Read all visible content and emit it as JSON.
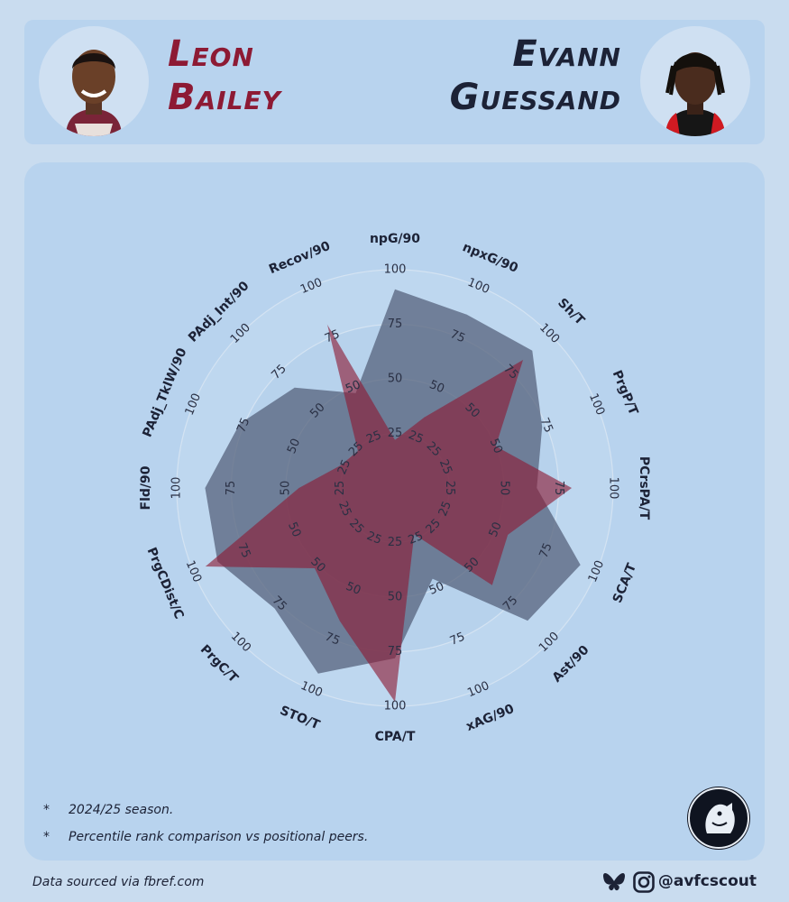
{
  "players": {
    "left": {
      "first": "Leon",
      "last": "Bailey",
      "color": "#8d1a34"
    },
    "right": {
      "first": "Evann",
      "last": "Guessand",
      "color": "#1c2236"
    }
  },
  "notes": [
    "2024/25 season.",
    "Percentile rank comparison vs positional peers."
  ],
  "note_marker": "*",
  "footer": {
    "source": "Data sourced via fbref.com",
    "handle": "@avfcscout"
  },
  "icons": [
    "bluesky-icon",
    "instagram-icon",
    "club-logo-icon"
  ],
  "chart_data": {
    "type": "radar",
    "categories": [
      "npG/90",
      "npxG/90",
      "Sh/T",
      "PrgP/T",
      "PCrsPA/T",
      "SCA/T",
      "Ast/90",
      "xAG/90",
      "CPA/T",
      "STO/T",
      "PrgC/T",
      "PrgCDist/C",
      "Fld/90",
      "PAdj_TklW/90",
      "PAdj_Int/90",
      "Recov/90"
    ],
    "rlim": [
      0,
      100
    ],
    "ticks": [
      "25",
      "50",
      "75",
      "100"
    ],
    "series": [
      {
        "name": "Guessand",
        "color": "#5a6680",
        "values": [
          91,
          86,
          89,
          73,
          65,
          92,
          86,
          45,
          78,
          92,
          78,
          88,
          87,
          77,
          65,
          47
        ]
      },
      {
        "name": "Bailey",
        "color": "#8d1a34",
        "values": [
          22,
          35,
          83,
          50,
          81,
          56,
          63,
          23,
          98,
          66,
          52,
          94,
          44,
          27,
          24,
          81
        ]
      }
    ]
  }
}
